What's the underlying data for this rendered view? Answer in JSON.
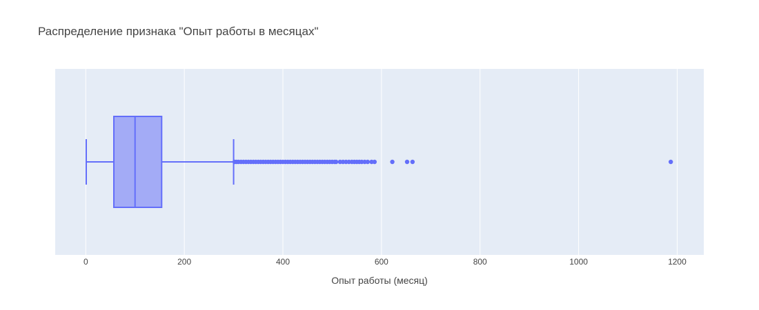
{
  "chart_data": {
    "type": "box",
    "orientation": "horizontal",
    "title": "Распределение признака \"Опыт работы в месяцах\"",
    "xlabel": "Опыт работы (месяц)",
    "ylabel": "",
    "xlim": [
      -62,
      1254
    ],
    "xticks": [
      0,
      200,
      400,
      600,
      800,
      1000,
      1200
    ],
    "xtick_labels": [
      "0",
      "200",
      "400",
      "600",
      "800",
      "1000",
      "1200"
    ],
    "grid": true,
    "legend": "none",
    "colors": {
      "box_fill": "#a3abf6",
      "box_line": "#636efa",
      "plot_bg": "#e5ecf6",
      "grid": "#ffffff",
      "text": "#444444"
    },
    "box": {
      "min": 1,
      "q1": 57,
      "median": 100,
      "q3": 154,
      "upper_fence": 300
    },
    "outliers": [
      302,
      306,
      310,
      315,
      320,
      325,
      330,
      335,
      340,
      345,
      350,
      355,
      360,
      365,
      370,
      375,
      380,
      385,
      390,
      395,
      400,
      405,
      410,
      415,
      420,
      425,
      430,
      435,
      440,
      445,
      450,
      455,
      460,
      465,
      470,
      475,
      480,
      485,
      490,
      495,
      500,
      505,
      508,
      516,
      522,
      528,
      534,
      540,
      545,
      550,
      555,
      560,
      566,
      572,
      580,
      586,
      622,
      652,
      663,
      1187
    ]
  }
}
